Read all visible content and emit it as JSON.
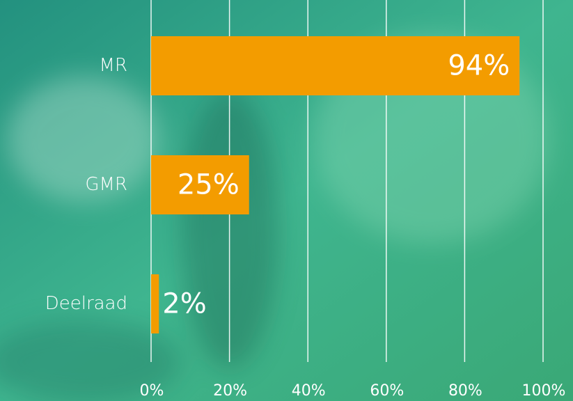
{
  "chart_data": {
    "type": "barh",
    "categories": [
      "MR",
      "GMR",
      "Deelraad"
    ],
    "values": [
      94,
      25,
      2
    ],
    "value_labels": [
      "94%",
      "25%",
      "2%"
    ],
    "color": "#f39c00",
    "xlim": [
      0,
      100
    ],
    "xticks": [
      {
        "value": 0,
        "label": "0%"
      },
      {
        "value": 20,
        "label": "20%"
      },
      {
        "value": 40,
        "label": "40%"
      },
      {
        "value": 60,
        "label": "60%"
      },
      {
        "value": 80,
        "label": "80%"
      },
      {
        "value": 100,
        "label": "100%"
      }
    ],
    "grid": true
  }
}
